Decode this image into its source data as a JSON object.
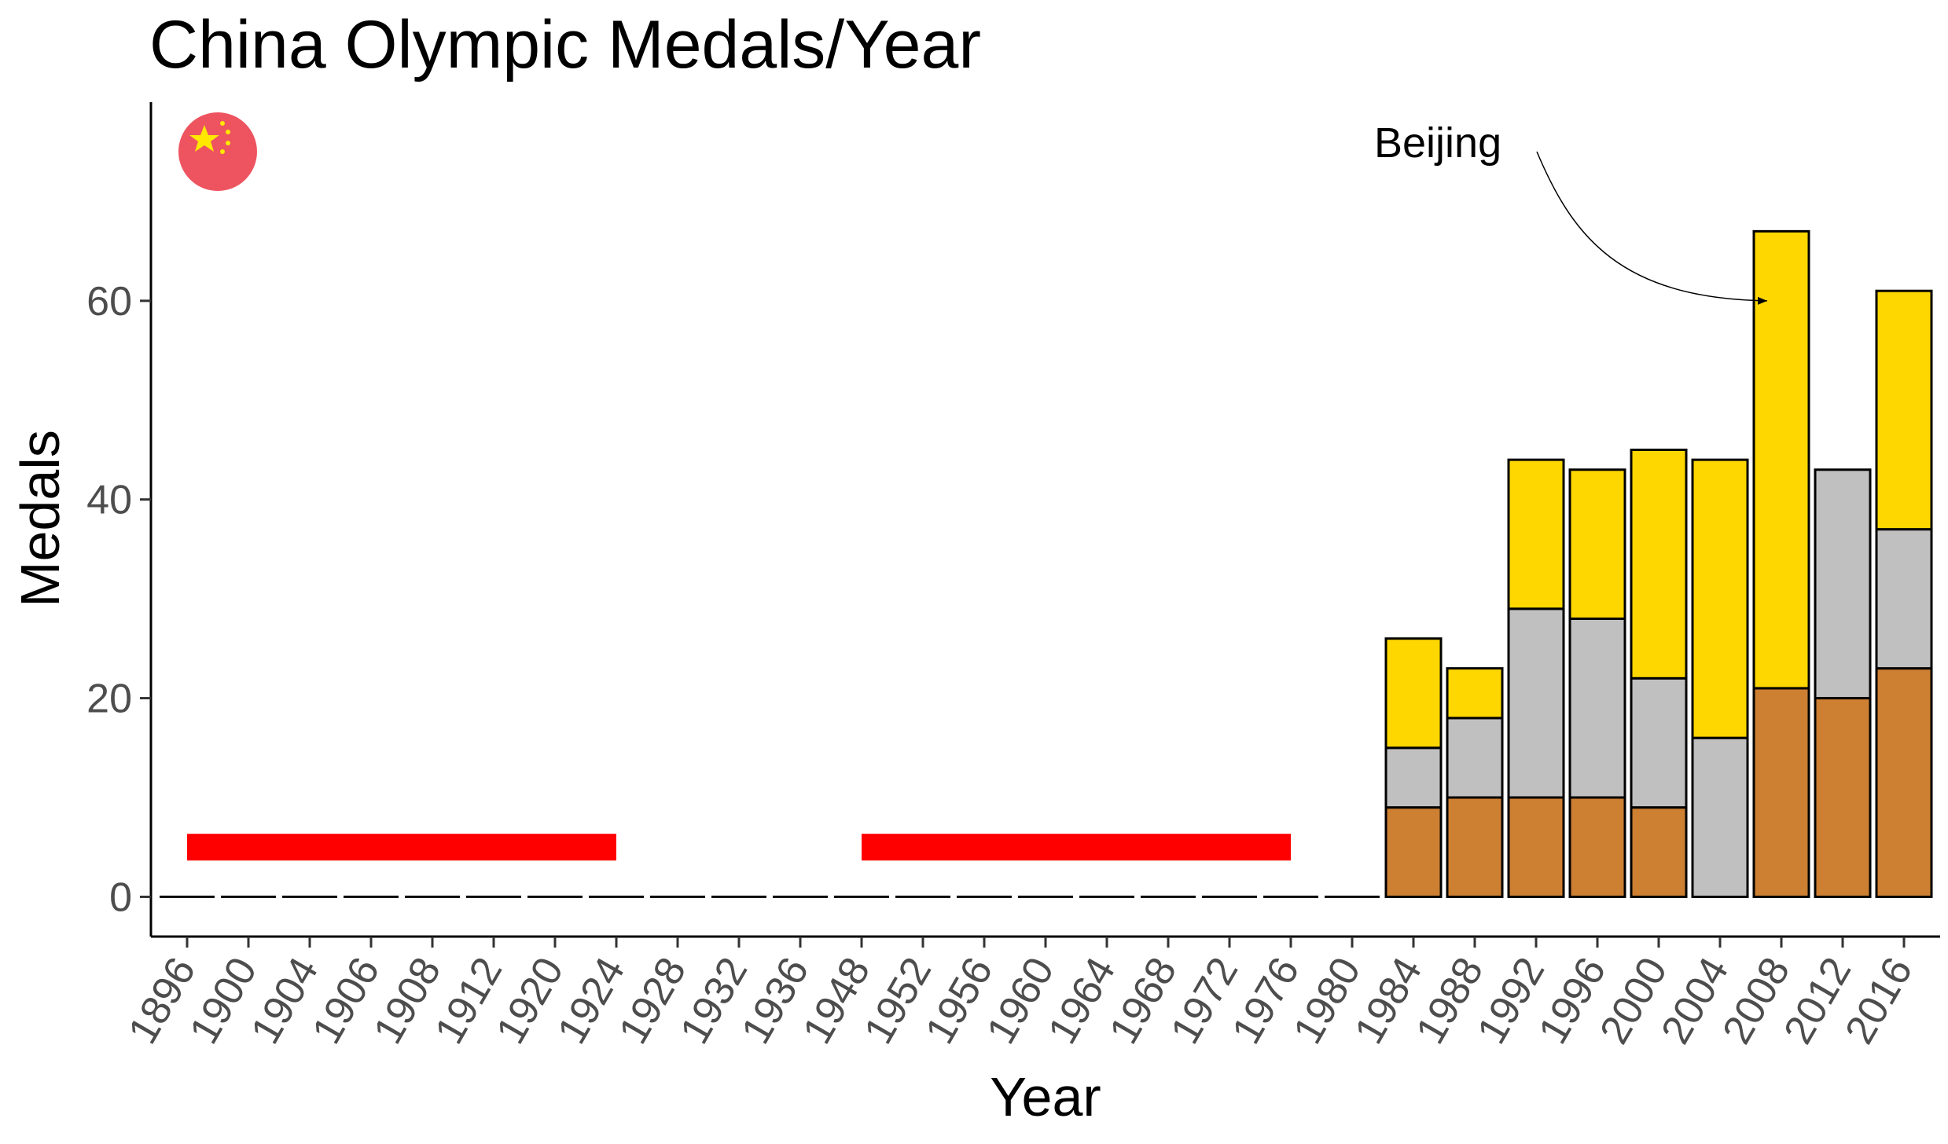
{
  "chart_data": {
    "type": "bar",
    "title": "China Olympic Medals/Year",
    "xlabel": "Year",
    "ylabel": "Medals",
    "categories": [
      "1896",
      "1900",
      "1904",
      "1906",
      "1908",
      "1912",
      "1920",
      "1924",
      "1928",
      "1932",
      "1936",
      "1948",
      "1952",
      "1956",
      "1960",
      "1964",
      "1968",
      "1972",
      "1976",
      "1980",
      "1984",
      "1988",
      "1992",
      "1996",
      "2000",
      "2004",
      "2008",
      "2012",
      "2016"
    ],
    "stacked": true,
    "series": [
      {
        "key": "bronze",
        "color": "#CD7F32",
        "values": [
          0,
          0,
          0,
          0,
          0,
          0,
          0,
          0,
          0,
          0,
          0,
          0,
          0,
          0,
          0,
          0,
          0,
          0,
          0,
          0,
          9,
          10,
          10,
          10,
          9,
          0,
          21,
          20,
          23
        ]
      },
      {
        "key": "silver",
        "color": "#C0C0C0",
        "values": [
          0,
          0,
          0,
          0,
          0,
          0,
          0,
          0,
          0,
          0,
          0,
          0,
          0,
          0,
          0,
          0,
          0,
          0,
          0,
          0,
          6,
          8,
          19,
          18,
          13,
          16,
          0,
          23,
          14
        ]
      },
      {
        "key": "gold",
        "color": "#FFD700",
        "values": [
          0,
          0,
          0,
          0,
          0,
          0,
          0,
          0,
          0,
          0,
          0,
          0,
          0,
          0,
          0,
          0,
          0,
          0,
          0,
          0,
          11,
          5,
          15,
          15,
          23,
          28,
          46,
          0,
          24
        ]
      }
    ],
    "yticks": [
      0,
      20,
      40,
      60
    ],
    "ylim": [
      -4,
      80
    ],
    "highlight_ranges": [
      {
        "from": "1896",
        "to": "1924",
        "value": 5,
        "color": "#FF0000"
      },
      {
        "from": "1948",
        "to": "1976",
        "value": 5,
        "color": "#FF0000"
      }
    ],
    "annotation": {
      "text": "Beijing",
      "target_category": "2008",
      "target_value": 60
    },
    "flag_icon": "china-flag-circle-icon",
    "x_tick_rotation": -60,
    "grid": false,
    "legend": "none"
  }
}
